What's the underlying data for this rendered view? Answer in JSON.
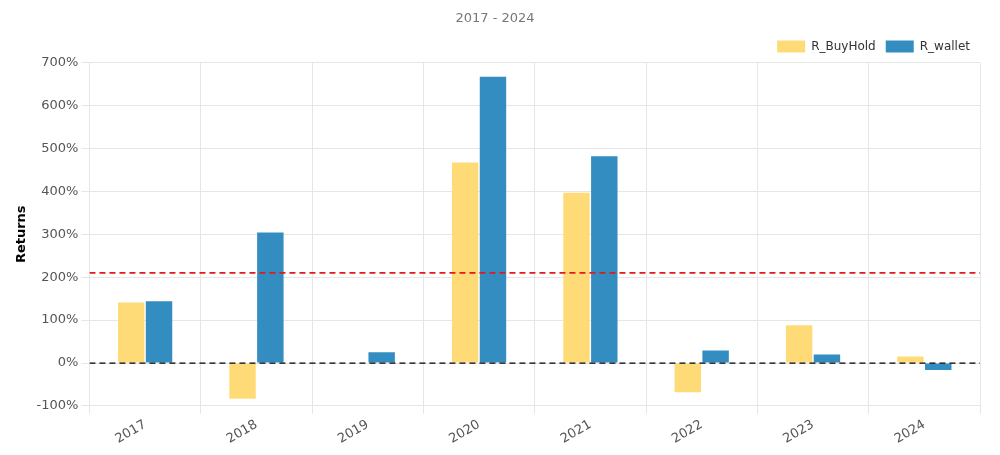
{
  "chart_data": {
    "type": "bar",
    "title": "2017 - 2024",
    "y_label": "Returns",
    "categories": [
      "2017",
      "2018",
      "2019",
      "2020",
      "2021",
      "2022",
      "2023",
      "2024"
    ],
    "series": [
      {
        "name": "R_BuyHold",
        "color": "#ffdb78",
        "values": [
          141,
          -83,
          0,
          467,
          397,
          -68,
          88,
          15
        ]
      },
      {
        "name": "R_wallet",
        "color": "#348dc1",
        "values": [
          144,
          304,
          25,
          667,
          482,
          29,
          20,
          -16
        ]
      }
    ],
    "reference_lines": [
      {
        "value": 210,
        "color": "#e3191c",
        "line_style": "dashed"
      },
      {
        "value": 0,
        "color": "#000000",
        "line_style": "dashed"
      }
    ],
    "ylim": [
      -100,
      700
    ],
    "yticks": [
      {
        "value": -100,
        "label": "-100%"
      },
      {
        "value": 0,
        "label": "0%"
      },
      {
        "value": 100,
        "label": "100%"
      },
      {
        "value": 200,
        "label": "200%"
      },
      {
        "value": 300,
        "label": "300%"
      },
      {
        "value": 400,
        "label": "400%"
      },
      {
        "value": 500,
        "label": "500%"
      },
      {
        "value": 600,
        "label": "600%"
      },
      {
        "value": 700,
        "label": "700%"
      }
    ],
    "grid": true,
    "legend": "upper right"
  }
}
